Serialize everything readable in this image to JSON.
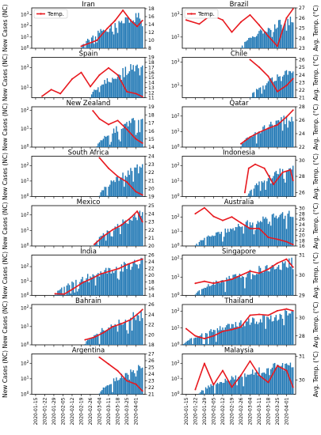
{
  "figure": {
    "y_left_label": "New Cases (NC)",
    "y_right_label": "Avg. Temp. (°C)",
    "legend_label": "Temp.",
    "bar_color": "#1f77b4",
    "line_color": "#e8191f"
  },
  "chart_data": {
    "type": "bar+line",
    "x_dates": [
      "2020-01-15",
      "2020-01-22",
      "2020-01-29",
      "2020-02-05",
      "2020-02-12",
      "2020-02-19",
      "2020-02-26",
      "2020-03-04",
      "2020-03-11",
      "2020-03-18",
      "2020-03-25",
      "2020-04-01"
    ],
    "panels": [
      {
        "title": "Iran",
        "bar_start": "2020-02-19",
        "bar_end": "2020-04-06",
        "nc_peak": 3000,
        "y_left_ticks": [
          "10^0",
          "10^1",
          "10^2",
          "10^3"
        ],
        "y_left_max_exp": 3.6,
        "y_right_ticks": [
          8,
          10,
          12,
          14,
          16,
          18
        ],
        "temp_range": [
          8,
          18.2
        ],
        "temp": [
          [
            "2020-02-19",
            8.5
          ],
          [
            "2020-03-02",
            10
          ],
          [
            "2020-03-10",
            13
          ],
          [
            "2020-03-16",
            15
          ],
          [
            "2020-03-22",
            17.6
          ],
          [
            "2020-03-28",
            15
          ],
          [
            "2020-04-02",
            13.5
          ],
          [
            "2020-04-06",
            15
          ]
        ],
        "legend": true
      },
      {
        "title": "Brazil",
        "bar_start": "2020-02-26",
        "bar_end": "2020-04-06",
        "nc_peak": 1200,
        "y_left_ticks": [
          "10^1",
          "10^3"
        ],
        "y_left_max_exp": 3.6,
        "y_right_ticks": [
          23,
          24,
          25,
          26,
          27
        ],
        "temp_range": [
          23,
          27
        ],
        "temp": [
          [
            "2020-01-15",
            25.8
          ],
          [
            "2020-01-25",
            25.4
          ],
          [
            "2020-02-03",
            26.3
          ],
          [
            "2020-02-12",
            25.8
          ],
          [
            "2020-02-19",
            24.6
          ],
          [
            "2020-02-26",
            25.6
          ],
          [
            "2020-03-04",
            26.3
          ],
          [
            "2020-03-11",
            25.3
          ],
          [
            "2020-03-18",
            24.2
          ],
          [
            "2020-03-25",
            23.2
          ],
          [
            "2020-04-01",
            26
          ],
          [
            "2020-04-06",
            26.9
          ]
        ],
        "legend": true
      },
      {
        "title": "Spain",
        "bar_start": "2020-02-26",
        "bar_end": "2020-04-06",
        "nc_peak": 8000,
        "y_left_ticks": [
          "10^1",
          "10^3"
        ],
        "y_left_max_exp": 4,
        "y_right_ticks": [
          11,
          12,
          13,
          14,
          15,
          16,
          17,
          18,
          19
        ],
        "temp_range": [
          11,
          19
        ],
        "temp": [
          [
            "2020-01-20",
            11.3
          ],
          [
            "2020-01-27",
            12.6
          ],
          [
            "2020-02-03",
            11.8
          ],
          [
            "2020-02-12",
            14.7
          ],
          [
            "2020-02-19",
            16
          ],
          [
            "2020-02-26",
            13.2
          ],
          [
            "2020-03-04",
            15.5
          ],
          [
            "2020-03-11",
            16.9
          ],
          [
            "2020-03-18",
            15.5
          ],
          [
            "2020-03-25",
            12.2
          ],
          [
            "2020-04-01",
            11.8
          ],
          [
            "2020-04-06",
            11.2
          ]
        ]
      },
      {
        "title": "Chile",
        "bar_start": "2020-03-04",
        "bar_end": "2020-04-06",
        "nc_peak": 400,
        "y_left_ticks": [
          "10^1",
          "10^3"
        ],
        "y_left_max_exp": 3.4,
        "y_right_ticks": [
          21,
          22,
          23,
          24,
          25,
          26
        ],
        "temp_range": [
          21,
          26.3
        ],
        "temp": [
          [
            "2020-03-04",
            26
          ],
          [
            "2020-03-11",
            25
          ],
          [
            "2020-03-18",
            23.8
          ],
          [
            "2020-03-25",
            21.8
          ],
          [
            "2020-04-01",
            22.6
          ],
          [
            "2020-04-06",
            23.5
          ]
        ]
      },
      {
        "title": "New Zealand",
        "bar_start": "2020-03-02",
        "bar_end": "2020-04-06",
        "nc_peak": 80,
        "y_left_ticks": [
          "10^0",
          "10^1",
          "10^2"
        ],
        "y_left_max_exp": 2.2,
        "y_right_ticks": [
          14,
          15,
          16,
          17,
          18,
          19
        ],
        "temp_range": [
          14,
          19
        ],
        "temp": [
          [
            "2020-02-28",
            18.5
          ],
          [
            "2020-03-04",
            17.5
          ],
          [
            "2020-03-11",
            16.8
          ],
          [
            "2020-03-18",
            17.3
          ],
          [
            "2020-03-25",
            16.2
          ],
          [
            "2020-04-01",
            15
          ],
          [
            "2020-04-06",
            14.5
          ]
        ]
      },
      {
        "title": "Qatar",
        "bar_start": "2020-02-26",
        "bar_end": "2020-04-06",
        "nc_peak": 200,
        "y_left_ticks": [
          "10^0",
          "10^1",
          "10^2"
        ],
        "y_left_max_exp": 2.6,
        "y_right_ticks": [
          22,
          24,
          26,
          28
        ],
        "temp_range": [
          22,
          28
        ],
        "temp": [
          [
            "2020-02-26",
            22.5
          ],
          [
            "2020-03-04",
            23.5
          ],
          [
            "2020-03-11",
            24.2
          ],
          [
            "2020-03-18",
            24.8
          ],
          [
            "2020-03-25",
            25.3
          ],
          [
            "2020-04-01",
            26.5
          ],
          [
            "2020-04-06",
            27.5
          ]
        ]
      },
      {
        "title": "South Africa",
        "bar_start": "2020-03-04",
        "bar_end": "2020-04-06",
        "nc_peak": 200,
        "y_left_ticks": [
          "10^0",
          "10^1",
          "10^2"
        ],
        "y_left_max_exp": 2.6,
        "y_right_ticks": [
          19,
          20,
          21,
          22,
          23,
          24
        ],
        "temp_range": [
          19,
          24
        ],
        "temp": [
          [
            "2020-03-04",
            23.8
          ],
          [
            "2020-03-11",
            22.5
          ],
          [
            "2020-03-18",
            21.5
          ],
          [
            "2020-03-25",
            20.8
          ],
          [
            "2020-04-01",
            19.6
          ],
          [
            "2020-04-06",
            19.2
          ]
        ]
      },
      {
        "title": "Indonesia",
        "bar_start": "2020-03-02",
        "bar_end": "2020-04-06",
        "nc_peak": 200,
        "y_left_ticks": [
          "10^0",
          "10^1",
          "10^2"
        ],
        "y_left_max_exp": 2.6,
        "y_right_ticks": [
          26,
          28,
          30
        ],
        "temp_range": [
          25.5,
          30.5
        ],
        "temp": [
          [
            "2020-02-29",
            26
          ],
          [
            "2020-03-03",
            29
          ],
          [
            "2020-03-08",
            29.5
          ],
          [
            "2020-03-15",
            29
          ],
          [
            "2020-03-22",
            27
          ],
          [
            "2020-03-29",
            28.5
          ],
          [
            "2020-04-04",
            28.8
          ],
          [
            "2020-04-06",
            27.5
          ]
        ]
      },
      {
        "title": "Mexico",
        "bar_start": "2020-02-29",
        "bar_end": "2020-04-06",
        "nc_peak": 250,
        "y_left_ticks": [
          "10^0",
          "10^1",
          "10^2"
        ],
        "y_left_max_exp": 2.6,
        "y_right_ticks": [
          20,
          21,
          22,
          23,
          24,
          25
        ],
        "temp_range": [
          20,
          25
        ],
        "temp": [
          [
            "2020-02-29",
            20.2
          ],
          [
            "2020-03-07",
            21.2
          ],
          [
            "2020-03-14",
            22
          ],
          [
            "2020-03-21",
            22.6
          ],
          [
            "2020-03-28",
            23.5
          ],
          [
            "2020-04-02",
            24.3
          ],
          [
            "2020-04-06",
            23
          ]
        ]
      },
      {
        "title": "Australia",
        "bar_start": "2020-01-22",
        "bar_end": "2020-04-06",
        "nc_peak": 400,
        "y_left_ticks": [
          "10^0",
          "10^1",
          "10^2"
        ],
        "y_left_max_exp": 2.8,
        "y_right_ticks": [
          16,
          18,
          20,
          22,
          24,
          26,
          28,
          30
        ],
        "temp_range": [
          16,
          31
        ],
        "temp": [
          [
            "2020-01-22",
            28
          ],
          [
            "2020-01-29",
            30.2
          ],
          [
            "2020-02-05",
            27
          ],
          [
            "2020-02-12",
            25.5
          ],
          [
            "2020-02-19",
            26.8
          ],
          [
            "2020-02-26",
            24.6
          ],
          [
            "2020-03-04",
            22.5
          ],
          [
            "2020-03-11",
            22.5
          ],
          [
            "2020-03-18",
            19.2
          ],
          [
            "2020-03-25",
            18.5
          ],
          [
            "2020-04-01",
            17.6
          ],
          [
            "2020-04-06",
            16.5
          ]
        ]
      },
      {
        "title": "India",
        "bar_start": "2020-01-30",
        "bar_end": "2020-04-06",
        "nc_peak": 500,
        "y_left_ticks": [
          "10^0",
          "10^1",
          "10^2"
        ],
        "y_left_max_exp": 2.8,
        "y_right_ticks": [
          14,
          16,
          18,
          20,
          22,
          24,
          26
        ],
        "temp_range": [
          14,
          26
        ],
        "temp": [
          [
            "2020-01-30",
            14.5
          ],
          [
            "2020-02-06",
            14.4
          ],
          [
            "2020-02-13",
            16
          ],
          [
            "2020-02-20",
            17.8
          ],
          [
            "2020-02-27",
            19
          ],
          [
            "2020-03-05",
            20.4
          ],
          [
            "2020-03-12",
            21.2
          ],
          [
            "2020-03-19",
            22
          ],
          [
            "2020-03-26",
            23.3
          ],
          [
            "2020-04-02",
            24.3
          ],
          [
            "2020-04-06",
            24.8
          ]
        ]
      },
      {
        "title": "Singapore",
        "bar_start": "2020-01-22",
        "bar_end": "2020-04-06",
        "nc_peak": 120,
        "y_left_ticks": [
          "10^0",
          "10^1",
          "10^2"
        ],
        "y_left_max_exp": 2.2,
        "y_right_ticks": [
          29,
          30,
          31
        ],
        "temp_range": [
          29,
          31
        ],
        "temp": [
          [
            "2020-01-22",
            29.6
          ],
          [
            "2020-01-29",
            29.7
          ],
          [
            "2020-02-05",
            29.6
          ],
          [
            "2020-02-12",
            29.7
          ],
          [
            "2020-02-19",
            29.8
          ],
          [
            "2020-02-26",
            30
          ],
          [
            "2020-03-04",
            30.2
          ],
          [
            "2020-03-11",
            30.1
          ],
          [
            "2020-03-18",
            30.3
          ],
          [
            "2020-03-25",
            30.6
          ],
          [
            "2020-04-01",
            30.8
          ],
          [
            "2020-04-06",
            30.4
          ]
        ]
      },
      {
        "title": "Bahrain",
        "bar_start": "2020-02-22",
        "bar_end": "2020-04-06",
        "nc_peak": 100,
        "y_left_ticks": [
          "10^0",
          "10^1",
          "10^2"
        ],
        "y_left_max_exp": 2.2,
        "y_right_ticks": [
          18,
          20,
          22,
          24,
          26
        ],
        "temp_range": [
          18,
          26
        ],
        "temp": [
          [
            "2020-02-22",
            19
          ],
          [
            "2020-02-29",
            19.5
          ],
          [
            "2020-03-07",
            20.4
          ],
          [
            "2020-03-14",
            21.6
          ],
          [
            "2020-03-21",
            22.2
          ],
          [
            "2020-03-28",
            23
          ],
          [
            "2020-04-04",
            24.5
          ],
          [
            "2020-04-06",
            25
          ]
        ]
      },
      {
        "title": "Thailand",
        "bar_start": "2020-01-13",
        "bar_end": "2020-04-06",
        "nc_peak": 150,
        "y_left_ticks": [
          "10^0",
          "10^1",
          "10^2"
        ],
        "y_left_max_exp": 2.4,
        "y_right_ticks": [
          28,
          30
        ],
        "temp_range": [
          27,
          31.5
        ],
        "temp": [
          [
            "2020-01-15",
            28.8
          ],
          [
            "2020-01-22",
            28
          ],
          [
            "2020-01-29",
            27.7
          ],
          [
            "2020-02-05",
            28
          ],
          [
            "2020-02-12",
            28.5
          ],
          [
            "2020-02-19",
            28.7
          ],
          [
            "2020-02-26",
            29
          ],
          [
            "2020-03-04",
            30.3
          ],
          [
            "2020-03-11",
            30.4
          ],
          [
            "2020-03-18",
            30.3
          ],
          [
            "2020-03-25",
            30.8
          ],
          [
            "2020-04-01",
            31
          ],
          [
            "2020-04-06",
            30.8
          ]
        ]
      },
      {
        "title": "Argentina",
        "bar_start": "2020-03-04",
        "bar_end": "2020-04-06",
        "nc_peak": 100,
        "y_left_ticks": [
          "10^0",
          "10^1",
          "10^2"
        ],
        "y_left_max_exp": 2.6,
        "y_right_ticks": [
          21,
          22,
          23,
          24,
          25,
          26,
          27
        ],
        "temp_range": [
          21,
          27
        ],
        "temp": [
          [
            "2020-03-04",
            26.5
          ],
          [
            "2020-03-11",
            25.5
          ],
          [
            "2020-03-18",
            24.5
          ],
          [
            "2020-03-25",
            23
          ],
          [
            "2020-04-01",
            22.5
          ],
          [
            "2020-04-06",
            21.5
          ]
        ]
      },
      {
        "title": "Malaysia",
        "bar_start": "2020-01-25",
        "bar_end": "2020-04-06",
        "nc_peak": 200,
        "y_left_ticks": [
          "10^0",
          "10^1",
          "10^2"
        ],
        "y_left_max_exp": 2.6,
        "y_right_ticks": [
          30,
          31
        ],
        "temp_range": [
          29.4,
          31.1
        ],
        "temp": [
          [
            "2020-01-22",
            29.6
          ],
          [
            "2020-01-29",
            30.7
          ],
          [
            "2020-02-05",
            29.8
          ],
          [
            "2020-02-12",
            30.4
          ],
          [
            "2020-02-19",
            29.7
          ],
          [
            "2020-02-26",
            30.2
          ],
          [
            "2020-03-04",
            30.8
          ],
          [
            "2020-03-11",
            30.2
          ],
          [
            "2020-03-18",
            29.9
          ],
          [
            "2020-03-25",
            30.6
          ],
          [
            "2020-04-01",
            30.4
          ],
          [
            "2020-04-06",
            29.7
          ]
        ]
      }
    ]
  }
}
